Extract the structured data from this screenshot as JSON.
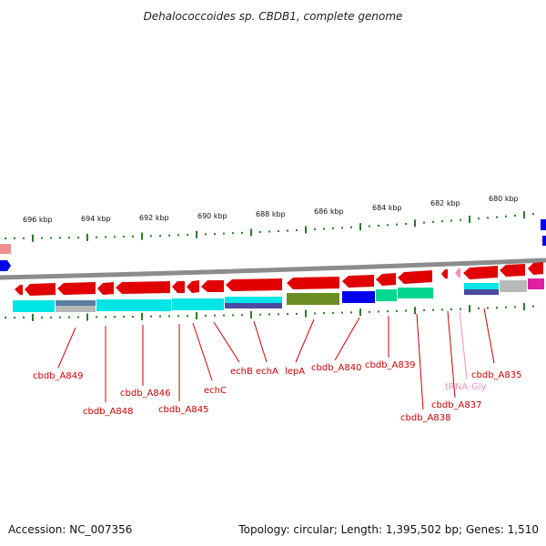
{
  "title": "Dehalococcoides sp. CBDB1, complete genome",
  "footer": {
    "accession": "Accession: NC_007356",
    "summary": "Topology: circular; Length: 1,395,502 bp; Genes: 1,510"
  },
  "ruler": {
    "ticks": [
      "696 kbp",
      "694 kbp",
      "692 kbp",
      "690 kbp",
      "688 kbp",
      "686 kbp",
      "684 kbp",
      "682 kbp",
      "680 kbp"
    ]
  },
  "genes": [
    {
      "label": "cbdb_A849",
      "color": "#cc0000"
    },
    {
      "label": "cbdb_A848",
      "color": "#cc0000"
    },
    {
      "label": "cbdb_A846",
      "color": "#cc0000"
    },
    {
      "label": "cbdb_A845",
      "color": "#cc0000"
    },
    {
      "label": "echC",
      "color": "#cc0000"
    },
    {
      "label": "echB",
      "color": "#cc0000"
    },
    {
      "label": "echA",
      "color": "#cc0000"
    },
    {
      "label": "lepA",
      "color": "#cc0000"
    },
    {
      "label": "cbdb_A840",
      "color": "#cc0000"
    },
    {
      "label": "cbdb_A839",
      "color": "#cc0000"
    },
    {
      "label": "cbdb_A838",
      "color": "#cc0000"
    },
    {
      "label": "cbdb_A837",
      "color": "#cc0000"
    },
    {
      "label": "tRNA-Gly",
      "color": "#f090c0"
    },
    {
      "label": "cbdb_A835",
      "color": "#cc0000"
    }
  ],
  "colors": {
    "backbone": "#8c8c8c",
    "gene_forward": "#e00000",
    "cog_cyan": "#00e5e5",
    "cog_olive": "#6b8e23",
    "cog_blue": "#0000ee",
    "cog_spring": "#00d890",
    "cog_slate": "#4a4aa0",
    "cog_gray": "#b8b8b8",
    "cog_magenta": "#e020a0",
    "gc_dash": "#2a7a2a"
  }
}
